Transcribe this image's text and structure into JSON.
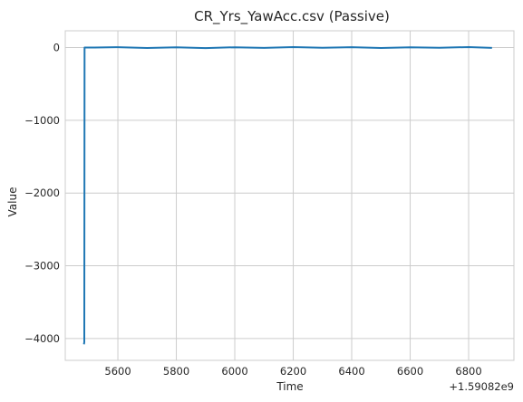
{
  "chart_data": {
    "type": "line",
    "title": "CR_Yrs_YawAcc.csv (Passive)",
    "xlabel": "Time",
    "ylabel": "Value",
    "x_offset_label": "+1.59082e9",
    "x_ticks": [
      5600,
      5800,
      6000,
      6200,
      6400,
      6600,
      6800
    ],
    "y_ticks": [
      0,
      -1000,
      -2000,
      -3000,
      -4000
    ],
    "y_tick_labels": [
      "0",
      "−1000",
      "−2000",
      "−3000",
      "−4000"
    ],
    "xlim": [
      5420,
      6955
    ],
    "ylim": [
      -4300,
      230
    ],
    "grid": true,
    "series": [
      {
        "color": "#1f77b4",
        "x": [
          5484,
          5485,
          5486,
          5487,
          5488,
          5520,
          5600,
          5700,
          5800,
          5900,
          6000,
          6100,
          6200,
          6300,
          6400,
          6500,
          6600,
          6700,
          6800,
          6880
        ],
        "y": [
          -4080,
          -4050,
          0,
          0,
          0,
          0,
          5,
          -6,
          4,
          -8,
          3,
          -5,
          6,
          -4,
          5,
          -7,
          4,
          -3,
          6,
          -5
        ]
      }
    ]
  }
}
